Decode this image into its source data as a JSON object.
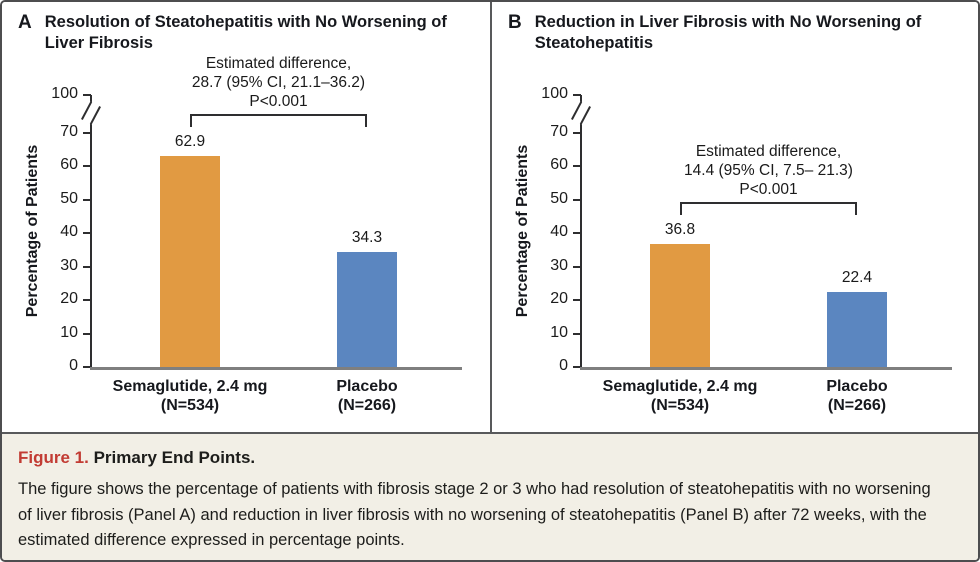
{
  "figure": {
    "caption_label": "Figure 1.",
    "caption_title": "Primary End Points.",
    "caption_body": "The figure shows the percentage of patients with fibrosis stage 2 or 3 who had resolution of steatohepatitis with no worsening of liver fibrosis (Panel A) and reduction in liver fibrosis with no worsening of steatohepatitis (Panel B) after 72 weeks, with the estimated difference expressed in percentage points."
  },
  "colors": {
    "semaglutide_bar": "#E19A42",
    "placebo_bar": "#5B86C0",
    "caption_background": "#F2EFE6",
    "figure_label_red": "#C23B33",
    "axis_dark": "#2E2E30",
    "baseline_gray": "#7F7F7F",
    "border_gray": "#4D4D4F"
  },
  "chart_data": [
    {
      "type": "bar",
      "panel_letter": "A",
      "title": "Resolution of Steatohepatitis with No Worsening of Liver Fibrosis",
      "title_lines": [
        "Resolution of Steatohepatitis with No Worsening of",
        "Liver Fibrosis"
      ],
      "ylabel": "Percentage of Patients",
      "xlabel": "",
      "ylim": [
        0,
        100
      ],
      "yticks": [
        0,
        10,
        20,
        30,
        40,
        50,
        60,
        70,
        100
      ],
      "axis_break_between": [
        70,
        100
      ],
      "grid": false,
      "legend": false,
      "categories": [
        "Semaglutide, 2.4 mg",
        "Placebo"
      ],
      "category_sublabels": [
        "(N=534)",
        "(N=266)"
      ],
      "values": [
        62.9,
        34.3
      ],
      "value_labels": [
        "62.9",
        "34.3"
      ],
      "bar_color_keys": [
        "semaglutide_bar",
        "placebo_bar"
      ],
      "annotation_lines": [
        "Estimated difference,",
        "28.7 (95% CI, 21.1–36.2)",
        "P<0.001"
      ]
    },
    {
      "type": "bar",
      "panel_letter": "B",
      "title": "Reduction in Liver Fibrosis with No Worsening of Steatohepatitis",
      "title_lines": [
        "Reduction in Liver Fibrosis with No Worsening of",
        "Steatohepatitis"
      ],
      "ylabel": "Percentage of Patients",
      "xlabel": "",
      "ylim": [
        0,
        100
      ],
      "yticks": [
        0,
        10,
        20,
        30,
        40,
        50,
        60,
        70,
        100
      ],
      "axis_break_between": [
        70,
        100
      ],
      "grid": false,
      "legend": false,
      "categories": [
        "Semaglutide, 2.4 mg",
        "Placebo"
      ],
      "category_sublabels": [
        "(N=534)",
        "(N=266)"
      ],
      "values": [
        36.8,
        22.4
      ],
      "value_labels": [
        "36.8",
        "22.4"
      ],
      "bar_color_keys": [
        "semaglutide_bar",
        "placebo_bar"
      ],
      "annotation_lines": [
        "Estimated difference,",
        "14.4 (95% CI, 7.5– 21.3)",
        "P<0.001"
      ]
    }
  ]
}
